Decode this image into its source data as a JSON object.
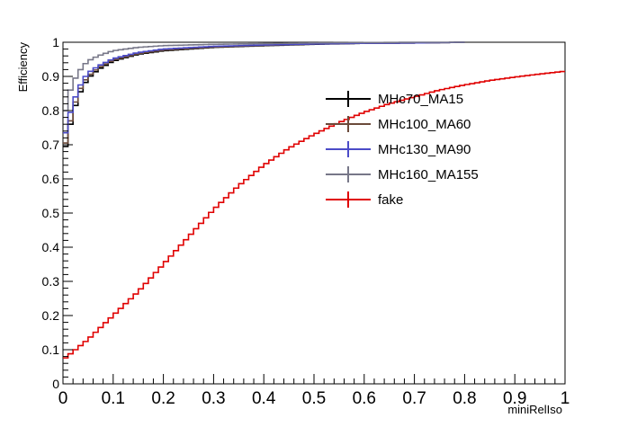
{
  "chart_data": {
    "type": "line",
    "style": "step histogram",
    "title": "",
    "xlabel": "miniRelIso",
    "ylabel": "Efficiency",
    "xlim": [
      0,
      1
    ],
    "ylim": [
      0,
      1
    ],
    "xticks": [
      "0",
      "0.1",
      "0.2",
      "0.3",
      "0.4",
      "0.5",
      "0.6",
      "0.7",
      "0.8",
      "0.9",
      "1"
    ],
    "yticks": [
      "0",
      "0.1",
      "0.2",
      "0.3",
      "0.4",
      "0.5",
      "0.6",
      "0.7",
      "0.8",
      "0.9",
      "1"
    ],
    "bin_width": 0.01,
    "grid": false,
    "legend_position": "upper-center",
    "series": [
      {
        "name": "MHc70_MA15",
        "color": "#000000",
        "x": [
          0,
          0.01,
          0.02,
          0.03,
          0.04,
          0.05,
          0.07,
          0.1,
          0.15,
          0.2,
          0.3,
          0.4,
          0.5,
          0.6,
          0.7,
          0.8
        ],
        "y": [
          0.66,
          0.73,
          0.79,
          0.84,
          0.87,
          0.895,
          0.92,
          0.945,
          0.965,
          0.975,
          0.985,
          0.99,
          0.994,
          0.997,
          0.998,
          1.0
        ],
        "x_end": 0.8
      },
      {
        "name": "MHc100_MA60",
        "color": "#6b4a3a",
        "x": [
          0,
          0.01,
          0.02,
          0.03,
          0.04,
          0.05,
          0.07,
          0.1,
          0.15,
          0.2,
          0.3,
          0.4,
          0.5,
          0.6,
          0.7,
          0.8
        ],
        "y": [
          0.67,
          0.74,
          0.8,
          0.85,
          0.88,
          0.9,
          0.925,
          0.948,
          0.967,
          0.977,
          0.986,
          0.991,
          0.995,
          0.997,
          0.998,
          1.0
        ],
        "x_end": 0.8
      },
      {
        "name": "MHc130_MA90",
        "color": "#4b4bc8",
        "x": [
          0,
          0.01,
          0.02,
          0.03,
          0.04,
          0.05,
          0.07,
          0.1,
          0.15,
          0.2,
          0.3,
          0.4,
          0.5,
          0.6,
          0.7,
          0.8
        ],
        "y": [
          0.7,
          0.77,
          0.82,
          0.86,
          0.89,
          0.91,
          0.93,
          0.952,
          0.97,
          0.98,
          0.988,
          0.992,
          0.995,
          0.997,
          0.998,
          1.0
        ],
        "x_end": 0.8
      },
      {
        "name": "MHc160_MA155",
        "color": "#777788",
        "x": [
          0,
          0.01,
          0.02,
          0.03,
          0.04,
          0.05,
          0.07,
          0.1,
          0.15,
          0.2,
          0.3,
          0.4,
          0.5,
          0.6,
          0.7,
          0.8
        ],
        "y": [
          0.76,
          0.84,
          0.88,
          0.91,
          0.93,
          0.945,
          0.96,
          0.975,
          0.985,
          0.99,
          0.994,
          0.996,
          0.998,
          0.999,
          1.0,
          1.0
        ],
        "x_end": 0.8
      },
      {
        "name": "fake",
        "color": "#e00000",
        "x": [
          0,
          0.05,
          0.1,
          0.15,
          0.2,
          0.25,
          0.3,
          0.35,
          0.4,
          0.45,
          0.5,
          0.55,
          0.6,
          0.65,
          0.7,
          0.75,
          0.8,
          0.85,
          0.9,
          0.95,
          1.0
        ],
        "y": [
          0.07,
          0.13,
          0.2,
          0.27,
          0.35,
          0.43,
          0.51,
          0.58,
          0.64,
          0.69,
          0.73,
          0.765,
          0.795,
          0.82,
          0.84,
          0.86,
          0.875,
          0.888,
          0.898,
          0.907,
          0.915
        ],
        "x_end": 1.0
      }
    ]
  }
}
